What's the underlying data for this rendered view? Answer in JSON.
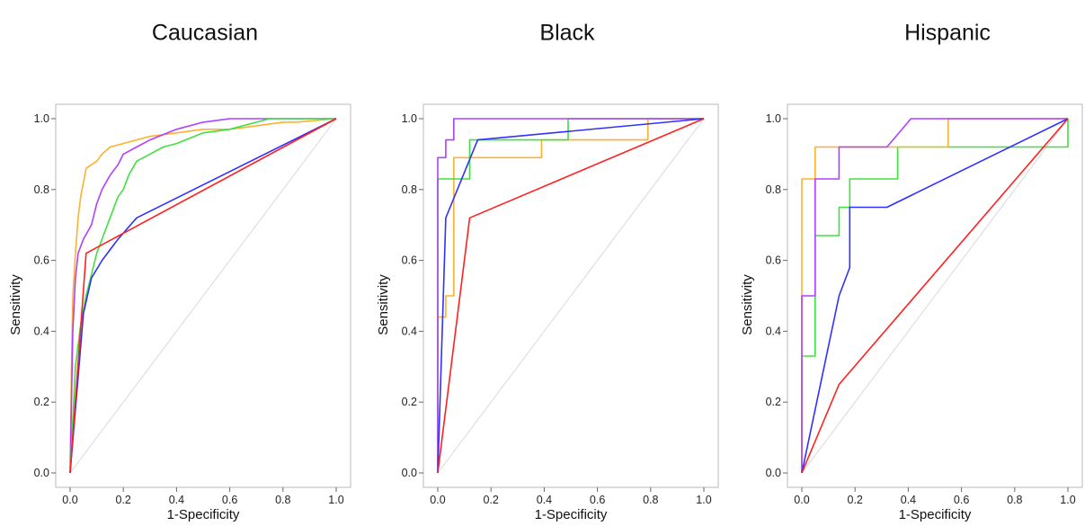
{
  "chart_data": [
    {
      "type": "line",
      "title": "Caucasian",
      "xlabel": "1-Specificity",
      "ylabel": "Sensitivity",
      "xlim": [
        0,
        1
      ],
      "ylim": [
        0,
        1
      ],
      "xticks": [
        "0.0",
        "0.2",
        "0.4",
        "0.6",
        "0.8",
        "1.0"
      ],
      "yticks": [
        "0.0",
        "0.2",
        "0.4",
        "0.6",
        "0.8",
        "1.0"
      ],
      "grid": false,
      "reference_line": {
        "color": "#d9d9d9",
        "points": [
          [
            0,
            0
          ],
          [
            1,
            1
          ]
        ]
      },
      "series": [
        {
          "color": "#ffb030",
          "points": [
            [
              0,
              0
            ],
            [
              0.005,
              0.3
            ],
            [
              0.01,
              0.5
            ],
            [
              0.02,
              0.62
            ],
            [
              0.03,
              0.72
            ],
            [
              0.04,
              0.78
            ],
            [
              0.05,
              0.82
            ],
            [
              0.06,
              0.86
            ],
            [
              0.08,
              0.87
            ],
            [
              0.1,
              0.88
            ],
            [
              0.12,
              0.9
            ],
            [
              0.15,
              0.92
            ],
            [
              0.2,
              0.93
            ],
            [
              0.3,
              0.95
            ],
            [
              0.4,
              0.96
            ],
            [
              0.5,
              0.97
            ],
            [
              0.6,
              0.97
            ],
            [
              0.7,
              0.98
            ],
            [
              0.8,
              0.99
            ],
            [
              0.85,
              0.99
            ],
            [
              1,
              1
            ]
          ]
        },
        {
          "color": "#b040ff",
          "points": [
            [
              0,
              0
            ],
            [
              0.005,
              0.2
            ],
            [
              0.01,
              0.4
            ],
            [
              0.02,
              0.55
            ],
            [
              0.03,
              0.62
            ],
            [
              0.05,
              0.66
            ],
            [
              0.08,
              0.7
            ],
            [
              0.1,
              0.76
            ],
            [
              0.12,
              0.8
            ],
            [
              0.15,
              0.84
            ],
            [
              0.18,
              0.87
            ],
            [
              0.2,
              0.9
            ],
            [
              0.25,
              0.92
            ],
            [
              0.3,
              0.94
            ],
            [
              0.4,
              0.97
            ],
            [
              0.5,
              0.99
            ],
            [
              0.6,
              1.0
            ],
            [
              1,
              1
            ]
          ]
        },
        {
          "color": "#40e040",
          "points": [
            [
              0,
              0
            ],
            [
              0.01,
              0.15
            ],
            [
              0.02,
              0.3
            ],
            [
              0.04,
              0.42
            ],
            [
              0.06,
              0.5
            ],
            [
              0.08,
              0.56
            ],
            [
              0.1,
              0.62
            ],
            [
              0.12,
              0.66
            ],
            [
              0.15,
              0.72
            ],
            [
              0.18,
              0.78
            ],
            [
              0.2,
              0.8
            ],
            [
              0.22,
              0.84
            ],
            [
              0.25,
              0.88
            ],
            [
              0.3,
              0.9
            ],
            [
              0.35,
              0.92
            ],
            [
              0.4,
              0.93
            ],
            [
              0.5,
              0.96
            ],
            [
              0.6,
              0.97
            ],
            [
              0.7,
              0.99
            ],
            [
              0.75,
              1.0
            ],
            [
              1,
              1
            ]
          ]
        },
        {
          "color": "#3030ff",
          "points": [
            [
              0,
              0
            ],
            [
              0.05,
              0.45
            ],
            [
              0.08,
              0.55
            ],
            [
              0.12,
              0.6
            ],
            [
              0.18,
              0.66
            ],
            [
              0.25,
              0.72
            ],
            [
              1,
              1
            ]
          ]
        },
        {
          "color": "#ff2020",
          "points": [
            [
              0,
              0
            ],
            [
              0.06,
              0.62
            ],
            [
              1,
              1
            ]
          ]
        }
      ]
    },
    {
      "type": "line",
      "title": "Black",
      "xlabel": "1-Specificity",
      "ylabel": "Sensitivity",
      "xlim": [
        0,
        1
      ],
      "ylim": [
        0,
        1
      ],
      "xticks": [
        "0.0",
        "0.2",
        "0.4",
        "0.6",
        "0.8",
        "1.0"
      ],
      "yticks": [
        "0.0",
        "0.2",
        "0.4",
        "0.6",
        "0.8",
        "1.0"
      ],
      "grid": false,
      "reference_line": {
        "color": "#d9d9d9",
        "points": [
          [
            0,
            0
          ],
          [
            1,
            1
          ]
        ]
      },
      "series": [
        {
          "color": "#ffb030",
          "points": [
            [
              0,
              0
            ],
            [
              0,
              0.44
            ],
            [
              0.03,
              0.44
            ],
            [
              0.03,
              0.5
            ],
            [
              0.06,
              0.5
            ],
            [
              0.06,
              0.89
            ],
            [
              0.39,
              0.89
            ],
            [
              0.39,
              0.94
            ],
            [
              0.79,
              0.94
            ],
            [
              0.79,
              1.0
            ],
            [
              1,
              1
            ]
          ]
        },
        {
          "color": "#40e040",
          "points": [
            [
              0,
              0
            ],
            [
              0,
              0.83
            ],
            [
              0.12,
              0.83
            ],
            [
              0.12,
              0.94
            ],
            [
              0.49,
              0.94
            ],
            [
              0.49,
              1.0
            ],
            [
              1,
              1
            ]
          ]
        },
        {
          "color": "#b040ff",
          "points": [
            [
              0,
              0
            ],
            [
              0,
              0.89
            ],
            [
              0.03,
              0.89
            ],
            [
              0.03,
              0.94
            ],
            [
              0.06,
              0.94
            ],
            [
              0.06,
              1.0
            ],
            [
              1,
              1
            ]
          ]
        },
        {
          "color": "#3030ff",
          "points": [
            [
              0,
              0
            ],
            [
              0.03,
              0.72
            ],
            [
              0.15,
              0.94
            ],
            [
              1,
              1
            ]
          ]
        },
        {
          "color": "#ff2020",
          "points": [
            [
              0,
              0
            ],
            [
              0.12,
              0.72
            ],
            [
              1,
              1
            ]
          ]
        }
      ]
    },
    {
      "type": "line",
      "title": "Hispanic",
      "xlabel": "1-Specificity",
      "ylabel": "Sensitivity",
      "xlim": [
        0,
        1
      ],
      "ylim": [
        0,
        1
      ],
      "xticks": [
        "0.0",
        "0.2",
        "0.4",
        "0.6",
        "0.8",
        "1.0"
      ],
      "yticks": [
        "0.0",
        "0.2",
        "0.4",
        "0.6",
        "0.8",
        "1.0"
      ],
      "grid": false,
      "reference_line": {
        "color": "#d9d9d9",
        "points": [
          [
            0,
            0
          ],
          [
            1,
            1
          ]
        ]
      },
      "series": [
        {
          "color": "#40e040",
          "points": [
            [
              0,
              0
            ],
            [
              0,
              0.33
            ],
            [
              0.05,
              0.33
            ],
            [
              0.05,
              0.67
            ],
            [
              0.14,
              0.67
            ],
            [
              0.14,
              0.75
            ],
            [
              0.18,
              0.75
            ],
            [
              0.18,
              0.83
            ],
            [
              0.36,
              0.83
            ],
            [
              0.36,
              0.92
            ],
            [
              1,
              0.92
            ],
            [
              1,
              1
            ]
          ]
        },
        {
          "color": "#ffb030",
          "points": [
            [
              0,
              0
            ],
            [
              0,
              0.83
            ],
            [
              0.05,
              0.83
            ],
            [
              0.05,
              0.92
            ],
            [
              0.55,
              0.92
            ],
            [
              0.55,
              1.0
            ],
            [
              1,
              1
            ]
          ]
        },
        {
          "color": "#b040ff",
          "points": [
            [
              0,
              0
            ],
            [
              0,
              0.5
            ],
            [
              0.05,
              0.5
            ],
            [
              0.05,
              0.83
            ],
            [
              0.14,
              0.83
            ],
            [
              0.14,
              0.92
            ],
            [
              0.32,
              0.92
            ],
            [
              0.41,
              1.0
            ],
            [
              1,
              1
            ]
          ]
        },
        {
          "color": "#3030ff",
          "points": [
            [
              0,
              0
            ],
            [
              0.14,
              0.5
            ],
            [
              0.18,
              0.58
            ],
            [
              0.18,
              0.75
            ],
            [
              0.27,
              0.75
            ],
            [
              0.32,
              0.75
            ],
            [
              1,
              1
            ]
          ]
        },
        {
          "color": "#ff2020",
          "points": [
            [
              0,
              0
            ],
            [
              0.14,
              0.25
            ],
            [
              1,
              1
            ]
          ]
        }
      ]
    }
  ]
}
